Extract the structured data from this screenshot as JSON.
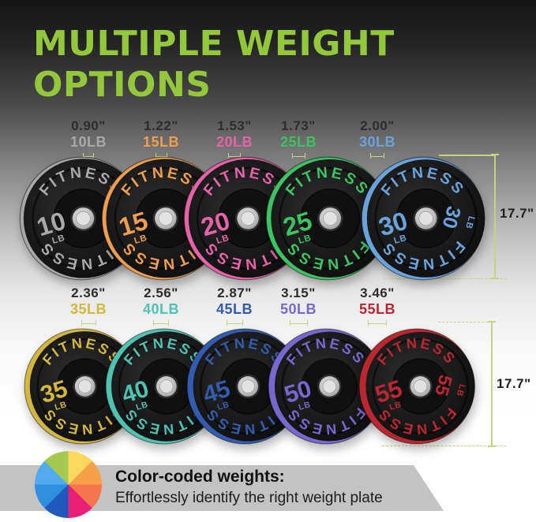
{
  "title": {
    "line1": "MULTIPLE WEIGHT",
    "line2": "OPTIONS",
    "color": "#93c83d"
  },
  "brand": "FITNESS",
  "rows": [
    {
      "height_label": "17.7\"",
      "plates": [
        {
          "thickness_label": "0.90\"",
          "weight_label": "10LB",
          "number": "10",
          "unit": "LB",
          "color": "#a8a8a8",
          "thickness_in": 0.9
        },
        {
          "thickness_label": "1.22\"",
          "weight_label": "15LB",
          "number": "15",
          "unit": "LB",
          "color": "#ef9e4f",
          "thickness_in": 1.22
        },
        {
          "thickness_label": "1.53\"",
          "weight_label": "20LB",
          "number": "20",
          "unit": "LB",
          "color": "#e763a8",
          "thickness_in": 1.53
        },
        {
          "thickness_label": "1.73\"",
          "weight_label": "25LB",
          "number": "25",
          "unit": "LB",
          "color": "#3cc363",
          "thickness_in": 1.73
        },
        {
          "thickness_label": "2.00\"",
          "weight_label": "30LB",
          "number": "30",
          "unit": "LB",
          "color": "#6aa2dc",
          "thickness_in": 2.0,
          "show_side_number": true
        }
      ]
    },
    {
      "height_label": "17.7\"",
      "plates": [
        {
          "thickness_label": "2.36\"",
          "weight_label": "35LB",
          "number": "35",
          "unit": "LB",
          "color": "#d3b73e",
          "thickness_in": 2.36
        },
        {
          "thickness_label": "2.56\"",
          "weight_label": "40LB",
          "number": "40",
          "unit": "LB",
          "color": "#4fc2b4",
          "thickness_in": 2.56
        },
        {
          "thickness_label": "2.87\"",
          "weight_label": "45LB",
          "number": "45",
          "unit": "LB",
          "color": "#335cb0",
          "thickness_in": 2.87
        },
        {
          "thickness_label": "3.15\"",
          "weight_label": "50LB",
          "number": "50",
          "unit": "LB",
          "color": "#7668cf",
          "thickness_in": 3.15
        },
        {
          "thickness_label": "3.46\"",
          "weight_label": "55LB",
          "number": "55",
          "unit": "LB",
          "color": "#bb2730",
          "thickness_in": 3.46,
          "show_side_number": true
        }
      ]
    }
  ],
  "dimension": {
    "line_color": "#c5d483",
    "text_color": "#1f1f1f"
  },
  "footer": {
    "heading": "Color-coded weights:",
    "subtext": "Effortlessly identify the right weight plate",
    "banner_color": "#c3c3c3",
    "wheel_colors": [
      "#ffd75e",
      "#f6a14a",
      "#f3764d",
      "#ea1d77",
      "#2257be",
      "#2e8fe0",
      "#54aaef",
      "#a5c94e"
    ]
  }
}
